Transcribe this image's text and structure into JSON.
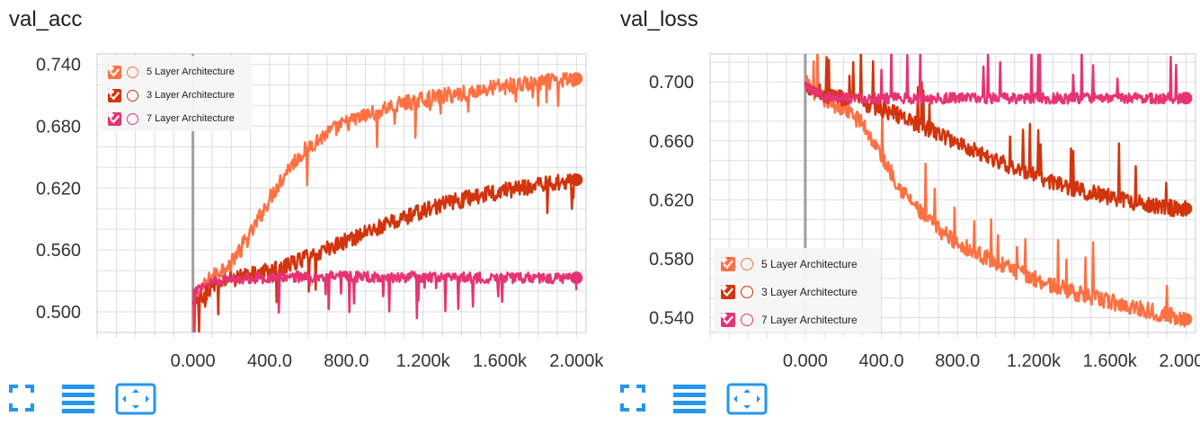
{
  "colors": {
    "series_5": "#ff7043",
    "series_3": "#d2340d",
    "series_7": "#e73374",
    "grid": "#dddddd",
    "zero_line": "#9e9e9e",
    "icon_accent": "#2196f3"
  },
  "toolbar_icons": [
    "fullscreen-icon",
    "legend-list-icon",
    "fit-domain-icon"
  ],
  "legend_items": [
    {
      "label": "5 Layer Architecture",
      "series": "series_5"
    },
    {
      "label": "3 Layer Architecture",
      "series": "series_3"
    },
    {
      "label": "7 Layer Architecture",
      "series": "series_7"
    }
  ],
  "chart_data": [
    {
      "type": "line",
      "title": "val_acc",
      "xlabel": "",
      "ylabel": "",
      "xlim": [
        -500,
        2050
      ],
      "ylim": [
        0.48,
        0.75
      ],
      "x_ticks": [
        "0.000",
        "400.0",
        "800.0",
        "1.200k",
        "1.600k",
        "2.000k"
      ],
      "y_ticks": [
        "0.500",
        "0.560",
        "0.620",
        "0.680",
        "0.740"
      ],
      "grid": true,
      "legend_placement": "top-left",
      "series": [
        {
          "name": "5 Layer Architecture",
          "color_key": "series_5",
          "x": [
            0,
            50,
            100,
            200,
            300,
            400,
            500,
            600,
            700,
            800,
            900,
            1000,
            1100,
            1200,
            1300,
            1400,
            1500,
            1600,
            1700,
            1800,
            1900,
            2000
          ],
          "y": [
            0.505,
            0.525,
            0.533,
            0.55,
            0.575,
            0.61,
            0.64,
            0.66,
            0.673,
            0.683,
            0.69,
            0.697,
            0.702,
            0.706,
            0.709,
            0.712,
            0.715,
            0.718,
            0.72,
            0.722,
            0.724,
            0.726
          ]
        },
        {
          "name": "3 Layer Architecture",
          "color_key": "series_3",
          "x": [
            0,
            50,
            100,
            200,
            300,
            400,
            500,
            600,
            700,
            800,
            900,
            1000,
            1100,
            1200,
            1300,
            1400,
            1500,
            1600,
            1700,
            1800,
            1900,
            2000
          ],
          "y": [
            0.505,
            0.515,
            0.525,
            0.532,
            0.536,
            0.54,
            0.546,
            0.553,
            0.561,
            0.569,
            0.577,
            0.584,
            0.591,
            0.598,
            0.604,
            0.609,
            0.613,
            0.617,
            0.62,
            0.623,
            0.626,
            0.628
          ]
        },
        {
          "name": "7 Layer Architecture",
          "color_key": "series_7",
          "x": [
            0,
            100,
            200,
            300,
            400,
            500,
            600,
            700,
            800,
            900,
            1000,
            1100,
            1200,
            1300,
            1400,
            1500,
            1600,
            1700,
            1800,
            1900,
            2000
          ],
          "y": [
            0.52,
            0.53,
            0.532,
            0.533,
            0.533,
            0.534,
            0.534,
            0.534,
            0.534,
            0.534,
            0.534,
            0.534,
            0.534,
            0.534,
            0.534,
            0.533,
            0.533,
            0.533,
            0.533,
            0.533,
            0.533
          ]
        }
      ]
    },
    {
      "type": "line",
      "title": "val_loss",
      "xlabel": "",
      "ylabel": "",
      "xlim": [
        -500,
        2050
      ],
      "ylim": [
        0.53,
        0.719
      ],
      "x_ticks": [
        "0.000",
        "400.0",
        "800.0",
        "1.200k",
        "1.600k",
        "2.000k"
      ],
      "y_ticks": [
        "0.540",
        "0.580",
        "0.620",
        "0.660",
        "0.700"
      ],
      "grid": true,
      "legend_placement": "bottom-left",
      "series": [
        {
          "name": "5 Layer Architecture",
          "color_key": "series_5",
          "x": [
            0,
            50,
            100,
            200,
            300,
            400,
            500,
            600,
            700,
            800,
            900,
            1000,
            1100,
            1200,
            1300,
            1400,
            1500,
            1600,
            1700,
            1800,
            1900,
            2000
          ],
          "y": [
            0.7,
            0.693,
            0.688,
            0.682,
            0.672,
            0.65,
            0.628,
            0.612,
            0.6,
            0.591,
            0.584,
            0.578,
            0.572,
            0.567,
            0.562,
            0.558,
            0.554,
            0.551,
            0.548,
            0.545,
            0.542,
            0.539
          ]
        },
        {
          "name": "3 Layer Architecture",
          "color_key": "series_3",
          "x": [
            0,
            100,
            200,
            300,
            400,
            500,
            600,
            700,
            800,
            900,
            1000,
            1100,
            1200,
            1300,
            1400,
            1500,
            1600,
            1700,
            1800,
            1900,
            2000
          ],
          "y": [
            0.698,
            0.692,
            0.689,
            0.686,
            0.682,
            0.677,
            0.671,
            0.665,
            0.659,
            0.653,
            0.647,
            0.642,
            0.637,
            0.632,
            0.628,
            0.625,
            0.622,
            0.619,
            0.617,
            0.615,
            0.614
          ]
        },
        {
          "name": "7 Layer Architecture",
          "color_key": "series_7",
          "x": [
            0,
            100,
            200,
            300,
            400,
            500,
            600,
            700,
            800,
            900,
            1000,
            1100,
            1200,
            1300,
            1400,
            1500,
            1600,
            1700,
            1800,
            1900,
            2000
          ],
          "y": [
            0.697,
            0.69,
            0.69,
            0.689,
            0.689,
            0.689,
            0.689,
            0.689,
            0.689,
            0.689,
            0.689,
            0.689,
            0.689,
            0.689,
            0.689,
            0.689,
            0.689,
            0.689,
            0.689,
            0.689,
            0.689
          ]
        }
      ]
    }
  ]
}
